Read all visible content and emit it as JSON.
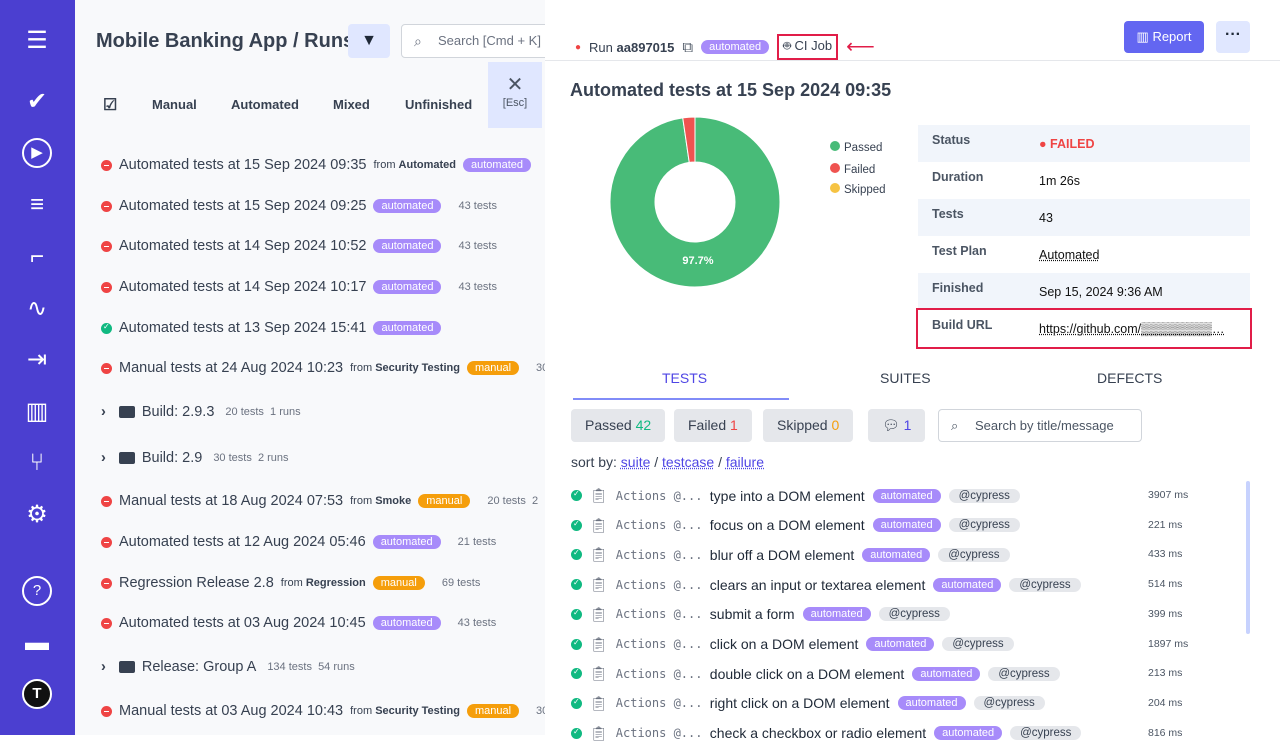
{
  "sidebar": {
    "icons": [
      "menu-icon",
      "check-icon",
      "play-icon",
      "list-check-icon",
      "steps-icon",
      "pulse-icon",
      "import-icon",
      "chart-icon",
      "branch-icon",
      "gear-icon",
      "help-icon",
      "folder-icon",
      "logo-icon"
    ]
  },
  "left": {
    "project": "Mobile Banking App",
    "sep": "/",
    "page": "Runs",
    "search_placeholder": "Search [Cmd + K]",
    "tabs": [
      "Manual",
      "Automated",
      "Mixed",
      "Unfinished"
    ],
    "esc_label": "[Esc]",
    "rows": [
      {
        "type": "run",
        "status": "failed",
        "title": "Automated tests at 15 Sep 2024 09:35",
        "from_label": "from",
        "from": "Automated",
        "badge": "automated",
        "meta": ""
      },
      {
        "type": "run",
        "status": "failed",
        "title": "Automated tests at 15 Sep 2024 09:25",
        "from_label": "",
        "from": "",
        "badge": "automated",
        "meta": "43 tests"
      },
      {
        "type": "run",
        "status": "failed",
        "title": "Automated tests at 14 Sep 2024 10:52",
        "from_label": "",
        "from": "",
        "badge": "automated",
        "meta": "43 tests"
      },
      {
        "type": "run",
        "status": "failed",
        "title": "Automated tests at 14 Sep 2024 10:17",
        "from_label": "",
        "from": "",
        "badge": "automated",
        "meta": "43 tests"
      },
      {
        "type": "run",
        "status": "passed",
        "title": "Automated tests at 13 Sep 2024 15:41",
        "from_label": "",
        "from": "",
        "badge": "automated",
        "meta": ""
      },
      {
        "type": "run",
        "status": "failed",
        "title": "Manual tests at 24 Aug 2024 10:23",
        "from_label": "from",
        "from": "Security Testing",
        "badge": "manual",
        "meta": "30"
      },
      {
        "type": "group",
        "title": "Build: 2.9.3",
        "meta": "20 tests  1 runs"
      },
      {
        "type": "group",
        "title": "Build: 2.9",
        "meta": "30 tests  2 runs"
      },
      {
        "type": "run",
        "status": "failed",
        "title": "Manual tests at 18 Aug 2024 07:53",
        "from_label": "from",
        "from": "Smoke",
        "badge": "manual",
        "meta": "20 tests  2"
      },
      {
        "type": "run",
        "status": "failed",
        "title": "Automated tests at 12 Aug 2024 05:46",
        "from_label": "",
        "from": "",
        "badge": "automated",
        "meta": "21 tests"
      },
      {
        "type": "run",
        "status": "failed",
        "title": "Regression Release 2.8",
        "from_label": "from",
        "from": "Regression",
        "badge": "manual",
        "meta": "69 tests"
      },
      {
        "type": "run",
        "status": "failed",
        "title": "Automated tests at 03 Aug 2024 10:45",
        "from_label": "",
        "from": "",
        "badge": "automated",
        "meta": "43 tests"
      },
      {
        "type": "group",
        "title": "Release: Group A",
        "meta": "134 tests  54 runs"
      },
      {
        "type": "run",
        "status": "failed",
        "title": "Manual tests at 03 Aug 2024 10:43",
        "from_label": "from",
        "from": "Security Testing",
        "badge": "manual",
        "meta": "30"
      }
    ]
  },
  "run": {
    "label": "Run",
    "id": "aa897015",
    "badge": "automated",
    "ci_job": "CI Job",
    "report": "Report",
    "more": "···",
    "title": "Automated tests at 15 Sep 2024 09:35",
    "chart": {
      "passed_pct": 97.7,
      "failed_pct": 2.3,
      "skipped_pct": 0,
      "label": "97.7%",
      "legend": [
        "Passed",
        "Failed",
        "Skipped"
      ],
      "colors": {
        "passed": "#48bb78",
        "failed": "#ef5350",
        "skipped": "#f6c343"
      }
    },
    "info": [
      {
        "k": "Status",
        "v": "● FAILED"
      },
      {
        "k": "Duration",
        "v": "1m 26s"
      },
      {
        "k": "Tests",
        "v": "43"
      },
      {
        "k": "Test Plan",
        "v": "Automated"
      },
      {
        "k": "Finished",
        "v": "Sep 15, 2024 9:36 AM"
      },
      {
        "k": "Build URL",
        "v": "https://github.com/▒▒▒▒▒▒▒▒…"
      }
    ],
    "tabs": [
      "TESTS",
      "SUITES",
      "DEFECTS"
    ],
    "filters": {
      "passed": "Passed",
      "passed_n": "42",
      "failed": "Failed",
      "failed_n": "1",
      "skipped": "Skipped",
      "skipped_n": "0",
      "comments_n": "1"
    },
    "search_placeholder": "Search by title/message",
    "sort": {
      "label": "sort by:",
      "suite": "suite",
      "testcase": "testcase",
      "failure": "failure"
    },
    "tests": [
      {
        "suite": "Actions @...",
        "title": "type into a DOM element",
        "badge": "automated",
        "tag": "@cypress",
        "ms": "3907 ms"
      },
      {
        "suite": "Actions @...",
        "title": "focus on a DOM element",
        "badge": "automated",
        "tag": "@cypress",
        "ms": "221 ms"
      },
      {
        "suite": "Actions @...",
        "title": "blur off a DOM element",
        "badge": "automated",
        "tag": "@cypress",
        "ms": "433 ms"
      },
      {
        "suite": "Actions @...",
        "title": "clears an input or textarea element",
        "badge": "automated",
        "tag": "@cypress",
        "ms": "514 ms"
      },
      {
        "suite": "Actions @...",
        "title": "submit a form",
        "badge": "automated",
        "tag": "@cypress",
        "ms": "399 ms"
      },
      {
        "suite": "Actions @...",
        "title": "click on a DOM element",
        "badge": "automated",
        "tag": "@cypress",
        "ms": "1897 ms"
      },
      {
        "suite": "Actions @...",
        "title": "double click on a DOM element",
        "badge": "automated",
        "tag": "@cypress",
        "ms": "213 ms"
      },
      {
        "suite": "Actions @...",
        "title": "right click on a DOM element",
        "badge": "automated",
        "tag": "@cypress",
        "ms": "204 ms"
      },
      {
        "suite": "Actions @...",
        "title": "check a checkbox or radio element",
        "badge": "automated",
        "tag": "@cypress",
        "ms": "816 ms"
      }
    ]
  }
}
